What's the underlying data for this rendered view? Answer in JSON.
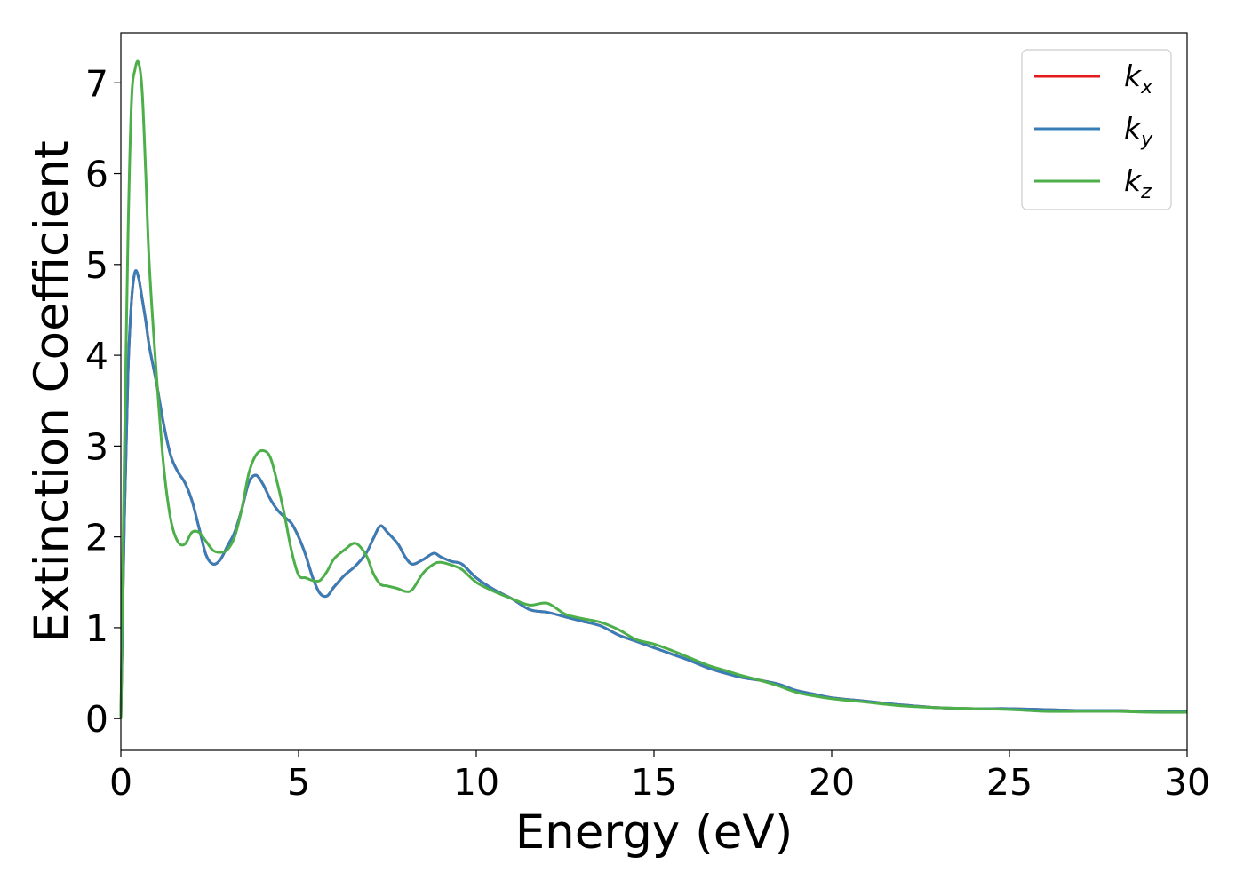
{
  "chart_data": {
    "type": "line",
    "title": "",
    "xlabel": "Energy (eV)",
    "ylabel": "Extinction Coefficient",
    "xlim": [
      0,
      30
    ],
    "ylim": [
      -0.35,
      7.55
    ],
    "xticks": [
      0,
      5,
      10,
      15,
      20,
      25,
      30
    ],
    "yticks": [
      0,
      1,
      2,
      3,
      4,
      5,
      6,
      7
    ],
    "grid": false,
    "legend_position": "top-right",
    "series": [
      {
        "name": "k_x",
        "legend_base": "k",
        "legend_sub": "x",
        "color": "#e41a1c",
        "x": [
          0,
          0.1,
          0.2,
          0.3,
          0.4,
          0.5,
          0.6,
          0.7,
          0.8,
          1.0,
          1.2,
          1.4,
          1.6,
          1.8,
          2.0,
          2.2,
          2.4,
          2.6,
          2.8,
          3.0,
          3.2,
          3.4,
          3.6,
          3.8,
          4.0,
          4.2,
          4.4,
          4.6,
          4.8,
          5.0,
          5.2,
          5.4,
          5.6,
          5.8,
          6.0,
          6.3,
          6.6,
          6.9,
          7.1,
          7.3,
          7.5,
          7.8,
          8.0,
          8.2,
          8.5,
          8.8,
          9.0,
          9.3,
          9.6,
          10.0,
          10.5,
          11.0,
          11.5,
          12.0,
          12.5,
          13.0,
          13.5,
          14.0,
          14.5,
          15.0,
          15.5,
          16.0,
          16.5,
          17.0,
          17.5,
          18.0,
          18.5,
          19.0,
          19.5,
          20.0,
          21.0,
          22.0,
          23.0,
          24.0,
          25.0,
          26.0,
          27.0,
          28.0,
          29.0,
          30.0
        ],
        "y": [
          0.0,
          2.2,
          3.8,
          4.6,
          4.92,
          4.85,
          4.62,
          4.38,
          4.1,
          3.7,
          3.25,
          2.9,
          2.72,
          2.6,
          2.4,
          2.1,
          1.8,
          1.7,
          1.75,
          1.9,
          2.05,
          2.3,
          2.6,
          2.68,
          2.58,
          2.42,
          2.3,
          2.22,
          2.15,
          2.0,
          1.8,
          1.55,
          1.38,
          1.35,
          1.45,
          1.58,
          1.68,
          1.82,
          1.98,
          2.12,
          2.05,
          1.92,
          1.78,
          1.7,
          1.75,
          1.82,
          1.78,
          1.73,
          1.7,
          1.55,
          1.42,
          1.32,
          1.2,
          1.17,
          1.12,
          1.07,
          1.02,
          0.92,
          0.85,
          0.78,
          0.71,
          0.64,
          0.56,
          0.5,
          0.45,
          0.42,
          0.38,
          0.31,
          0.27,
          0.23,
          0.19,
          0.15,
          0.12,
          0.11,
          0.11,
          0.1,
          0.09,
          0.09,
          0.08,
          0.08
        ]
      },
      {
        "name": "k_y",
        "legend_base": "k",
        "legend_sub": "y",
        "color": "#377eb8",
        "x": [
          0,
          0.1,
          0.2,
          0.3,
          0.4,
          0.5,
          0.6,
          0.7,
          0.8,
          1.0,
          1.2,
          1.4,
          1.6,
          1.8,
          2.0,
          2.2,
          2.4,
          2.6,
          2.8,
          3.0,
          3.2,
          3.4,
          3.6,
          3.8,
          4.0,
          4.2,
          4.4,
          4.6,
          4.8,
          5.0,
          5.2,
          5.4,
          5.6,
          5.8,
          6.0,
          6.3,
          6.6,
          6.9,
          7.1,
          7.3,
          7.5,
          7.8,
          8.0,
          8.2,
          8.5,
          8.8,
          9.0,
          9.3,
          9.6,
          10.0,
          10.5,
          11.0,
          11.5,
          12.0,
          12.5,
          13.0,
          13.5,
          14.0,
          14.5,
          15.0,
          15.5,
          16.0,
          16.5,
          17.0,
          17.5,
          18.0,
          18.5,
          19.0,
          19.5,
          20.0,
          21.0,
          22.0,
          23.0,
          24.0,
          25.0,
          26.0,
          27.0,
          28.0,
          29.0,
          30.0
        ],
        "y": [
          0.0,
          2.2,
          3.8,
          4.6,
          4.92,
          4.85,
          4.62,
          4.38,
          4.1,
          3.7,
          3.25,
          2.9,
          2.72,
          2.6,
          2.4,
          2.1,
          1.8,
          1.7,
          1.75,
          1.9,
          2.05,
          2.3,
          2.6,
          2.68,
          2.58,
          2.42,
          2.3,
          2.22,
          2.15,
          2.0,
          1.8,
          1.55,
          1.38,
          1.35,
          1.45,
          1.58,
          1.68,
          1.82,
          1.98,
          2.12,
          2.05,
          1.92,
          1.78,
          1.7,
          1.75,
          1.82,
          1.78,
          1.73,
          1.7,
          1.55,
          1.42,
          1.32,
          1.2,
          1.17,
          1.12,
          1.07,
          1.02,
          0.92,
          0.85,
          0.78,
          0.71,
          0.64,
          0.56,
          0.5,
          0.45,
          0.42,
          0.38,
          0.31,
          0.27,
          0.23,
          0.19,
          0.15,
          0.12,
          0.11,
          0.11,
          0.1,
          0.09,
          0.09,
          0.08,
          0.08
        ]
      },
      {
        "name": "k_z",
        "legend_base": "k",
        "legend_sub": "z",
        "color": "#4daf4a",
        "x": [
          0,
          0.1,
          0.2,
          0.3,
          0.4,
          0.5,
          0.6,
          0.7,
          0.8,
          1.0,
          1.2,
          1.4,
          1.6,
          1.8,
          2.0,
          2.2,
          2.4,
          2.6,
          2.8,
          3.0,
          3.2,
          3.4,
          3.6,
          3.8,
          4.0,
          4.2,
          4.4,
          4.6,
          4.8,
          5.0,
          5.2,
          5.4,
          5.6,
          5.8,
          6.0,
          6.3,
          6.6,
          6.9,
          7.1,
          7.3,
          7.5,
          7.8,
          8.0,
          8.2,
          8.5,
          8.8,
          9.0,
          9.3,
          9.6,
          10.0,
          10.5,
          11.0,
          11.5,
          12.0,
          12.5,
          13.0,
          13.5,
          14.0,
          14.5,
          15.0,
          15.5,
          16.0,
          16.5,
          17.0,
          17.5,
          18.0,
          18.5,
          19.0,
          19.5,
          20.0,
          21.0,
          22.0,
          23.0,
          24.0,
          25.0,
          26.0,
          27.0,
          28.0,
          29.0,
          30.0
        ],
        "y": [
          0.0,
          3.0,
          5.3,
          6.8,
          7.15,
          7.22,
          6.9,
          6.0,
          5.0,
          3.8,
          2.8,
          2.2,
          1.95,
          1.92,
          2.05,
          2.05,
          1.95,
          1.85,
          1.83,
          1.86,
          2.0,
          2.3,
          2.7,
          2.9,
          2.95,
          2.88,
          2.6,
          2.25,
          1.85,
          1.58,
          1.55,
          1.52,
          1.52,
          1.62,
          1.76,
          1.86,
          1.93,
          1.8,
          1.6,
          1.48,
          1.46,
          1.43,
          1.4,
          1.42,
          1.6,
          1.7,
          1.72,
          1.69,
          1.64,
          1.5,
          1.4,
          1.32,
          1.25,
          1.27,
          1.15,
          1.1,
          1.06,
          0.98,
          0.87,
          0.82,
          0.75,
          0.67,
          0.59,
          0.53,
          0.47,
          0.42,
          0.36,
          0.29,
          0.25,
          0.22,
          0.18,
          0.14,
          0.12,
          0.11,
          0.1,
          0.08,
          0.08,
          0.08,
          0.07,
          0.07
        ]
      }
    ]
  }
}
